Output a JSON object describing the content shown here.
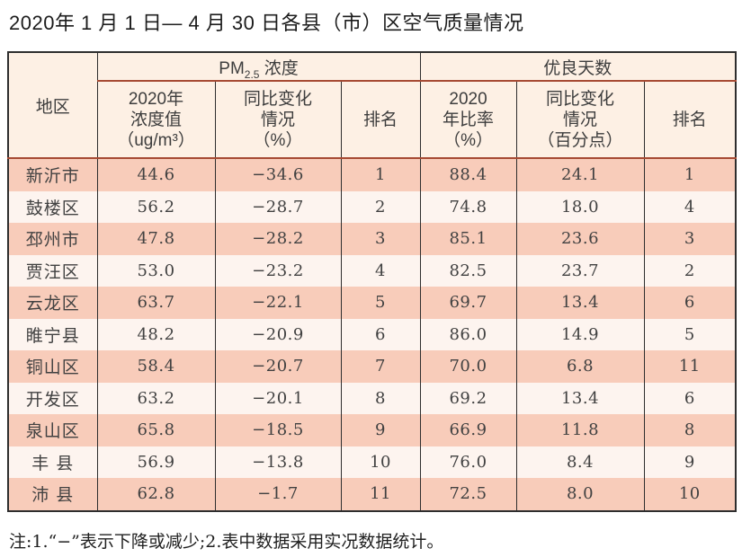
{
  "page": {
    "title": "2020年 1 月 1 日— 4 月 30 日各县（市）区空气质量情况",
    "note": "注:1.“−”表示下降或减少;2.表中数据采用实况数据统计。"
  },
  "table": {
    "header": {
      "region": "地区",
      "pm_group_prefix": "PM",
      "pm_group_sub": "2.5",
      "pm_group_suffix": " 浓度",
      "good_group": "优良天数",
      "pm_value": "2020年\n浓度值\n（ug/m³）",
      "pm_change": "同比变化\n情况\n（%）",
      "pm_rank": "排名",
      "good_rate": "2020\n年比率\n（%）",
      "good_change": "同比变化\n情况\n（百分点）",
      "good_rank": "排名"
    },
    "rows": [
      {
        "region": "新沂市",
        "pm_value": "44.6",
        "pm_change": "−34.6",
        "pm_rank": "1",
        "good_rate": "88.4",
        "good_change": "24.1",
        "good_rank": "1"
      },
      {
        "region": "鼓楼区",
        "pm_value": "56.2",
        "pm_change": "−28.7",
        "pm_rank": "2",
        "good_rate": "74.8",
        "good_change": "18.0",
        "good_rank": "4"
      },
      {
        "region": "邳州市",
        "pm_value": "47.8",
        "pm_change": "−28.2",
        "pm_rank": "3",
        "good_rate": "85.1",
        "good_change": "23.6",
        "good_rank": "3"
      },
      {
        "region": "贾汪区",
        "pm_value": "53.0",
        "pm_change": "−23.2",
        "pm_rank": "4",
        "good_rate": "82.5",
        "good_change": "23.7",
        "good_rank": "2"
      },
      {
        "region": "云龙区",
        "pm_value": "63.7",
        "pm_change": "−22.1",
        "pm_rank": "5",
        "good_rate": "69.7",
        "good_change": "13.4",
        "good_rank": "6"
      },
      {
        "region": "睢宁县",
        "pm_value": "48.2",
        "pm_change": "−20.9",
        "pm_rank": "6",
        "good_rate": "86.0",
        "good_change": "14.9",
        "good_rank": "5"
      },
      {
        "region": "铜山区",
        "pm_value": "58.4",
        "pm_change": "−20.7",
        "pm_rank": "7",
        "good_rate": "70.0",
        "good_change": "6.8",
        "good_rank": "11"
      },
      {
        "region": "开发区",
        "pm_value": "63.2",
        "pm_change": "−20.1",
        "pm_rank": "8",
        "good_rate": "69.2",
        "good_change": "13.4",
        "good_rank": "6"
      },
      {
        "region": "泉山区",
        "pm_value": "65.8",
        "pm_change": "−18.5",
        "pm_rank": "9",
        "good_rate": "66.9",
        "good_change": "11.8",
        "good_rank": "8"
      },
      {
        "region": "丰 县",
        "pm_value": "56.9",
        "pm_change": "−13.8",
        "pm_rank": "10",
        "good_rate": "76.0",
        "good_change": "8.4",
        "good_rank": "9"
      },
      {
        "region": "沛 县",
        "pm_value": "62.8",
        "pm_change": "−1.7",
        "pm_rank": "11",
        "good_rate": "72.5",
        "good_change": "8.0",
        "good_rank": "10"
      }
    ]
  },
  "colors": {
    "row_odd_bg": "#f8ccba",
    "row_even_bg": "#fdf4ef",
    "header_bg": "#fdf0e4",
    "red_divider": "#a64a33",
    "border_dark": "#2e2e2e",
    "text_dark": "#414141"
  }
}
